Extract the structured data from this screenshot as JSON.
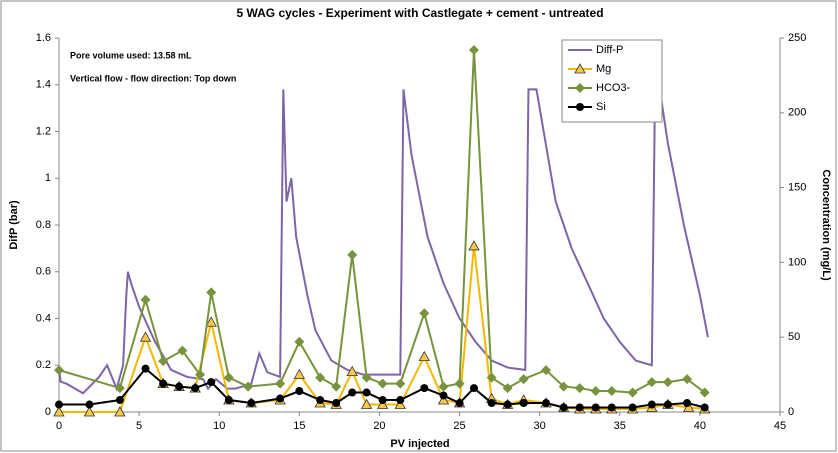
{
  "chart_data": {
    "type": "line",
    "title": "5 WAG cycles - Experiment with Castlegate + cement - untreated",
    "annotations": [
      "Pore volume used: 13.58 mL",
      "Vertical flow - flow direction: Top down"
    ],
    "x_label": "PV injected",
    "y_label": "DifP (bar)",
    "y2_label": "Concentration (mg/L)",
    "xlim": [
      0,
      45
    ],
    "xticks": [
      0,
      5,
      10,
      15,
      20,
      25,
      30,
      35,
      40,
      45
    ],
    "ylim": [
      0,
      1.6
    ],
    "yticks": [
      0,
      0.2,
      0.4,
      0.6,
      0.8,
      1,
      1.2,
      1.4,
      1.6
    ],
    "y2lim": [
      0,
      250
    ],
    "y2ticks": [
      0,
      50,
      100,
      150,
      200,
      250
    ],
    "grid": false,
    "legend": "upper right",
    "series": [
      {
        "name": "Diff-P",
        "color": "#7f65a8",
        "marker": "none",
        "x": [
          0,
          0.1,
          0.5,
          1.5,
          2.5,
          3,
          3.3,
          3.6,
          4,
          4.2,
          4.3,
          4.5,
          5,
          6,
          7,
          8,
          9,
          9.3,
          9.8,
          10.5,
          11,
          12,
          12.5,
          13,
          13.8,
          14,
          14.2,
          14.5,
          14.8,
          15.5,
          16,
          17,
          18,
          19,
          20,
          21.3,
          21.5,
          22,
          23,
          24,
          25,
          26,
          27,
          28,
          29.1,
          29.3,
          29.8,
          30.5,
          31,
          32,
          33,
          34,
          35,
          36,
          37,
          37.2,
          37.5,
          38,
          39,
          40,
          40.5
        ],
        "values": [
          0.19,
          0.13,
          0.12,
          0.08,
          0.15,
          0.2,
          0.15,
          0.1,
          0.2,
          0.5,
          0.6,
          0.55,
          0.45,
          0.3,
          0.18,
          0.15,
          0.14,
          0.1,
          0.14,
          0.1,
          0.1,
          0.12,
          0.25,
          0.17,
          0.15,
          1.38,
          0.9,
          1.0,
          0.75,
          0.5,
          0.35,
          0.22,
          0.18,
          0.16,
          0.16,
          0.16,
          1.38,
          1.1,
          0.75,
          0.55,
          0.4,
          0.3,
          0.22,
          0.19,
          0.18,
          1.38,
          1.38,
          1.1,
          0.9,
          0.7,
          0.55,
          0.4,
          0.3,
          0.22,
          0.2,
          1.38,
          1.38,
          1.15,
          0.8,
          0.5,
          0.32
        ]
      },
      {
        "name": "Mg",
        "color": "#f5b800",
        "marker": "triangle",
        "axis": "y2",
        "x": [
          0,
          1.9,
          3.8,
          5.4,
          6.5,
          7.5,
          8.5,
          9.5,
          10.6,
          12,
          13.8,
          15,
          16.3,
          17.3,
          18.3,
          19.2,
          20.2,
          21.3,
          22.8,
          24,
          25,
          25.9,
          27,
          28,
          29,
          30.4,
          31.5,
          32.5,
          33.5,
          34.5,
          35.8,
          37,
          38,
          39.3,
          40.3
        ],
        "values": [
          0,
          0,
          0,
          50,
          19,
          17,
          16,
          60,
          8,
          6,
          8,
          25,
          6,
          5,
          27,
          5,
          5,
          5,
          37,
          8,
          6,
          111,
          9,
          5,
          8,
          6,
          3,
          2,
          2,
          2,
          2,
          3,
          5,
          3,
          2
        ]
      },
      {
        "name": "HCO3-",
        "color": "#77933c",
        "marker": "diamond",
        "axis": "y2",
        "x": [
          0,
          3.8,
          5.4,
          6.5,
          7.7,
          8.8,
          9.5,
          10.6,
          11.8,
          13.8,
          15,
          16.3,
          17.3,
          18.3,
          19.2,
          20.2,
          21.3,
          22.8,
          24,
          25,
          25.9,
          27,
          28,
          29,
          30.4,
          31.5,
          32.5,
          33.5,
          34.5,
          35.8,
          37,
          38,
          39.2,
          40.3
        ],
        "values": [
          28,
          16,
          75,
          34,
          41,
          25,
          80,
          23,
          17,
          19,
          47,
          23,
          17,
          105,
          23,
          19,
          19,
          66,
          17,
          19,
          242,
          23,
          16,
          22,
          28,
          17,
          16,
          14,
          14,
          13,
          20,
          20,
          22,
          13
        ]
      },
      {
        "name": "Si",
        "color": "#000000",
        "marker": "circle",
        "axis": "y2",
        "x": [
          0,
          1.9,
          3.8,
          5.4,
          6.5,
          7.5,
          8.5,
          9.5,
          10.6,
          12,
          13.8,
          15,
          16.3,
          17.3,
          18.3,
          19.2,
          20.2,
          21.3,
          22.8,
          24,
          25,
          25.9,
          27,
          28,
          29,
          30.4,
          31.5,
          32.5,
          33.5,
          34.5,
          35.8,
          37,
          38,
          39.2,
          40.3
        ],
        "values": [
          5,
          5,
          8,
          29,
          19,
          17,
          16,
          20,
          8,
          6,
          9,
          14,
          8,
          6,
          13,
          13,
          8,
          8,
          16,
          11,
          6,
          16,
          6,
          5,
          6,
          6,
          3,
          3,
          3,
          3,
          3,
          5,
          5,
          6,
          3
        ]
      }
    ]
  }
}
